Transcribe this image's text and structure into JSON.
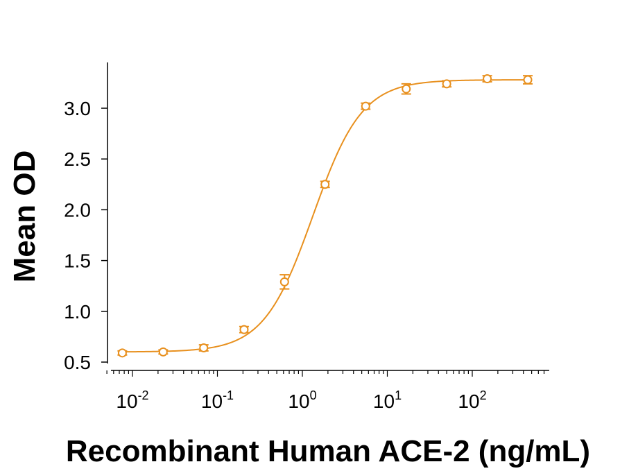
{
  "chart_data": {
    "type": "scatter",
    "title": "",
    "xlabel": "Recombinant Human ACE-2 (ng/mL)",
    "ylabel": "Mean OD",
    "x_scale": "log",
    "xlim": [
      0.005,
      700
    ],
    "ylim": [
      0.47,
      3.45
    ],
    "grid": false,
    "legend": "none",
    "color": "#E8901E",
    "y_ticks": [
      0.5,
      1.0,
      1.5,
      2.0,
      2.5,
      3.0
    ],
    "y_tick_labels": [
      "0.5",
      "1.0",
      "1.5",
      "2.0",
      "2.5",
      "3.0"
    ],
    "x_ticks": [
      0.01,
      0.1,
      1,
      10,
      100
    ],
    "x_tick_labels": [
      {
        "base": "10",
        "exp": "-2"
      },
      {
        "base": "10",
        "exp": "-1"
      },
      {
        "base": "10",
        "exp": "0"
      },
      {
        "base": "10",
        "exp": "1"
      },
      {
        "base": "10",
        "exp": "2"
      }
    ],
    "series": [
      {
        "x": [
          0.0076,
          0.023,
          0.069,
          0.206,
          0.617,
          1.85,
          5.56,
          16.7,
          50,
          150,
          450
        ],
        "y": [
          0.59,
          0.6,
          0.64,
          0.82,
          1.29,
          2.25,
          3.02,
          3.19,
          3.24,
          3.29,
          3.28
        ],
        "error": [
          0.02,
          0.02,
          0.03,
          0.03,
          0.07,
          0.03,
          0.03,
          0.05,
          0.03,
          0.03,
          0.04
        ]
      }
    ],
    "fit": {
      "model": "4PL",
      "bottom": 0.6,
      "top": 3.28,
      "ec50": 1.33,
      "hill": 1.5
    }
  }
}
